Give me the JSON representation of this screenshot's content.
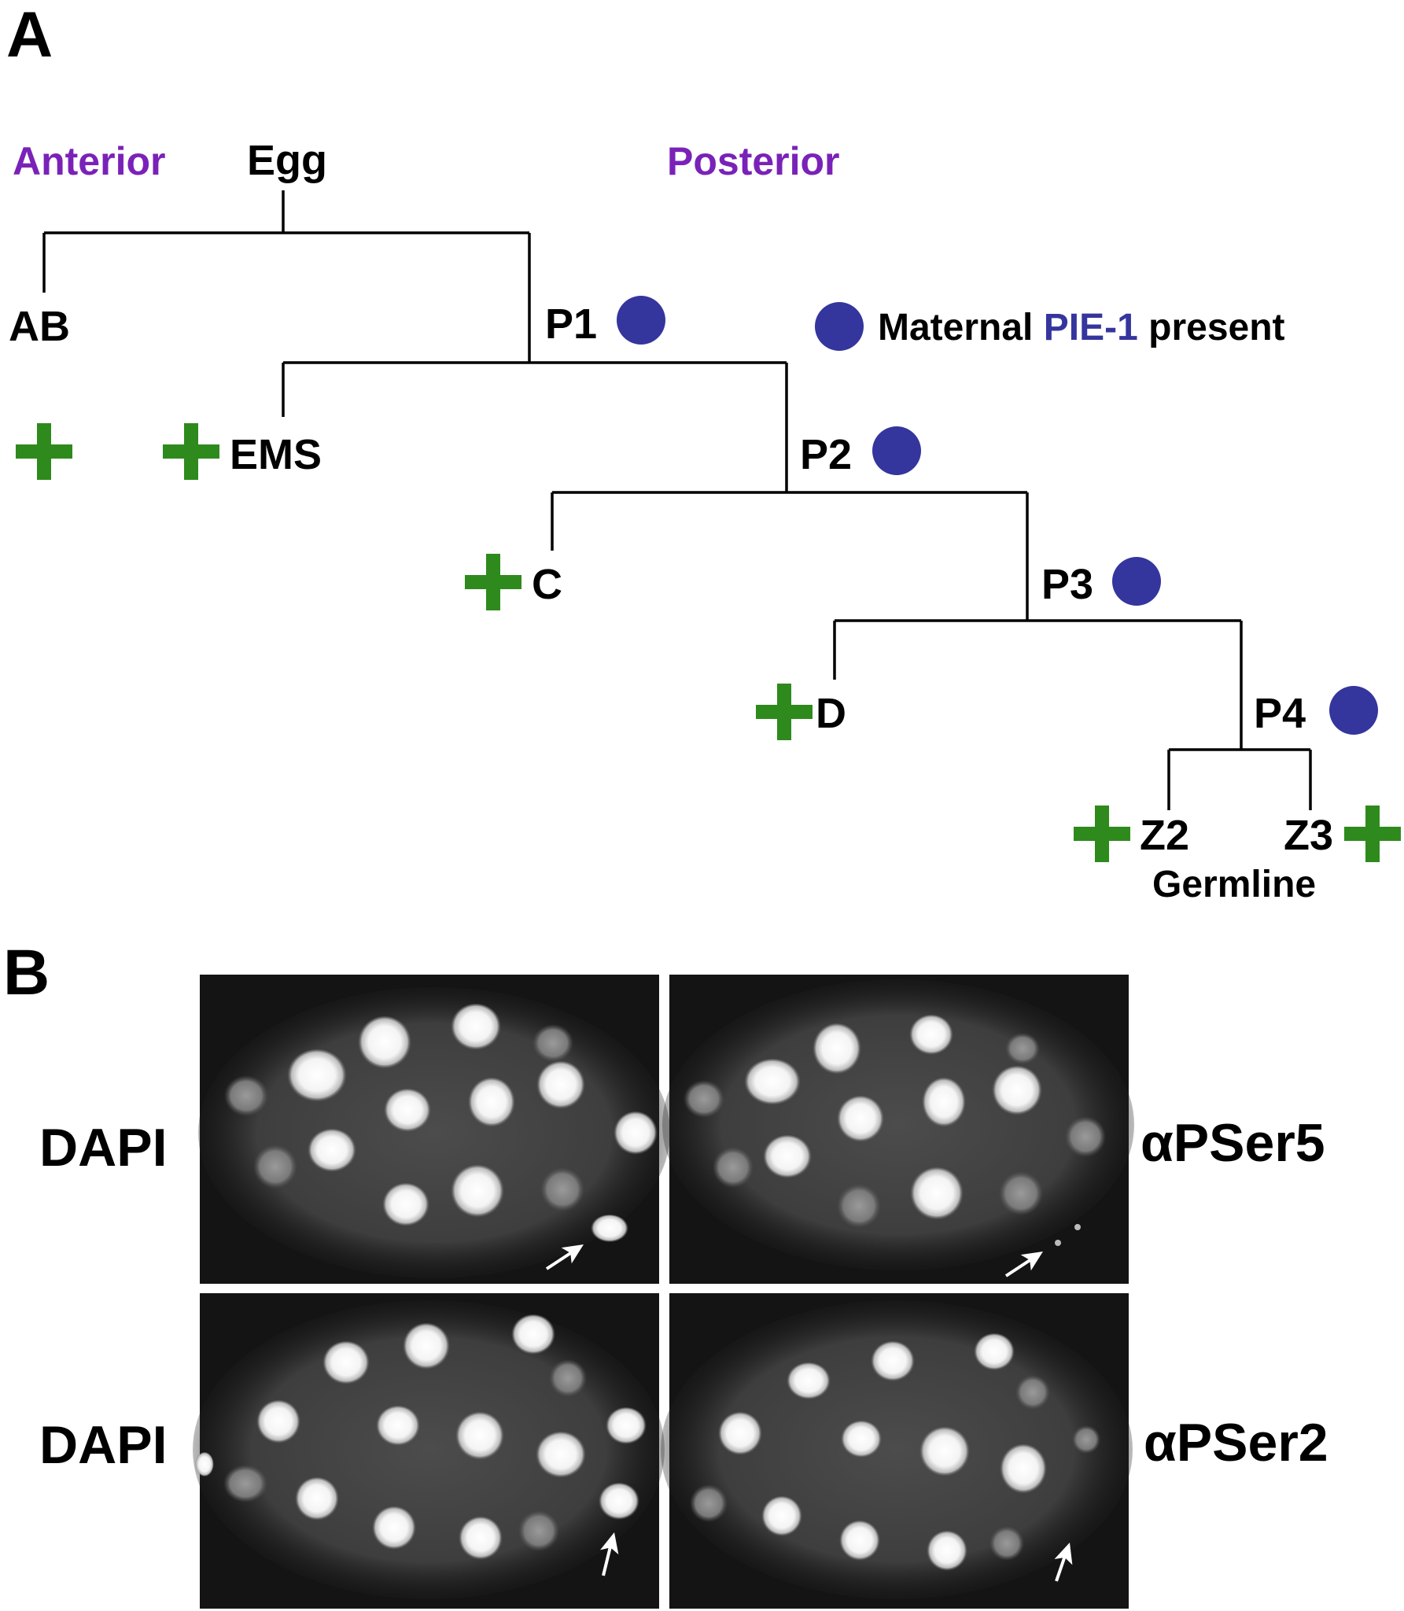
{
  "panel_a": {
    "letter": "A",
    "anterior": "Anterior",
    "posterior": "Posterior",
    "cells": {
      "egg": "Egg",
      "ab": "AB",
      "p1": "P1",
      "ems": "EMS",
      "p2": "P2",
      "c": "C",
      "p3": "P3",
      "d": "D",
      "p4": "P4",
      "z2": "Z2",
      "z3": "Z3"
    },
    "germline": "Germline",
    "legend": {
      "text_before": "Maternal",
      "highlight": "PIE-1",
      "text_after": "present"
    },
    "colors": {
      "purple_label": "#7a22b8",
      "pie1_dot": "#35359e",
      "plus": "#2e8a1c"
    }
  },
  "panel_b": {
    "letter": "B",
    "rows": [
      {
        "left_label": "DAPI",
        "right_label": "αPSer5"
      },
      {
        "left_label": "DAPI",
        "right_label": "αPSer2"
      }
    ]
  }
}
